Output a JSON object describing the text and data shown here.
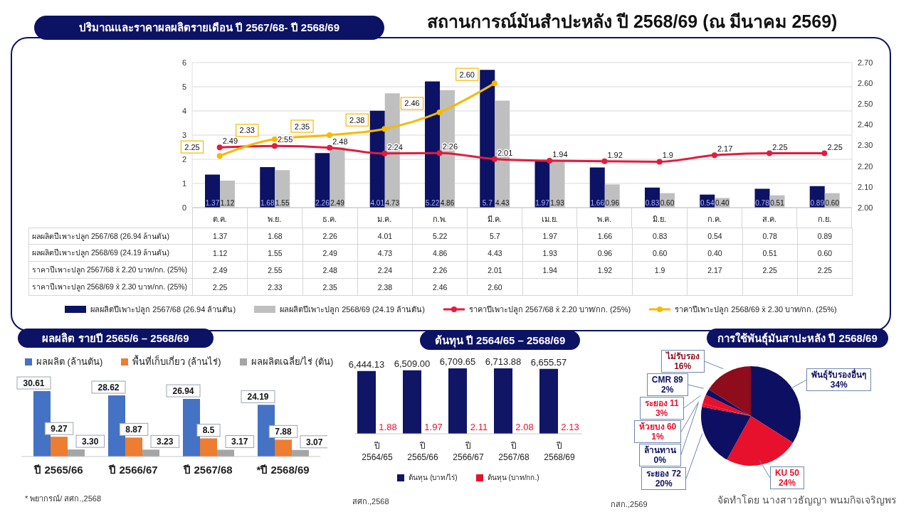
{
  "chart_data": [
    {
      "type": "bar",
      "title": "สถานการณ์มันสำปะหลัง ปี 2568/69 (ณ มีนาคม 2569)",
      "subtitle": "ปริมาณและราคาผลผลิตรายเดือน ปี 2567/68- ปี 2568/69",
      "categories": [
        "ต.ค.",
        "พ.ย.",
        "ธ.ค.",
        "ม.ค.",
        "ก.พ.",
        "มี.ค.",
        "เม.ย.",
        "พ.ค.",
        "มิ.ย.",
        "ก.ค.",
        "ส.ค.",
        "ก.ย."
      ],
      "series": [
        {
          "name": "ผลผลิตปีเพาะปลูก 2567/68 (26.94 ล้านตัน)",
          "type": "bar",
          "color": "#0c1264",
          "values": [
            1.37,
            1.68,
            2.26,
            4.01,
            5.22,
            5.7,
            1.97,
            1.66,
            0.83,
            0.54,
            0.78,
            0.89
          ],
          "value_labels": [
            "1.37",
            "1.68",
            "2.26",
            "4.01",
            "5.22",
            "5.7",
            "1.97",
            "1.66",
            "0.83",
            "0.54",
            "0.78",
            "0.89"
          ]
        },
        {
          "name": "ผลผลิตปีเพาะปลูก 2568/69 (24.19 ล้านตัน)",
          "type": "bar",
          "color": "#bfbfbf",
          "values": [
            1.12,
            1.55,
            2.49,
            4.73,
            4.86,
            4.43,
            1.93,
            0.96,
            0.6,
            0.4,
            0.51,
            0.6
          ],
          "value_labels": [
            "1.12",
            "1.55",
            "2.49",
            "4.73",
            "4.86",
            "4.43",
            "1.93",
            "0.96",
            "0.60",
            "0.40",
            "0.51",
            "0.60"
          ]
        },
        {
          "name": "ราคาปีเพาะปลูก 2567/68 x̄ 2.20 บาท/กก. (25%)",
          "type": "line",
          "color": "#e31b3c",
          "values": [
            2.49,
            2.55,
            2.48,
            2.24,
            2.26,
            2.01,
            1.94,
            1.92,
            1.9,
            2.17,
            2.25,
            2.25
          ],
          "value_labels": [
            "2.49",
            "2.55",
            "2.48",
            "2.24",
            "2.26",
            "2.01",
            "1.94",
            "1.92",
            "1.9",
            "2.17",
            "2.25",
            "2.25"
          ]
        },
        {
          "name": "ราคาปีเพาะปลูก 2568/69 x̄ 2.30 บาท/กก. (25%)",
          "type": "line",
          "axis": "y2",
          "color": "#f7b900",
          "values": [
            2.25,
            2.33,
            2.35,
            2.38,
            2.46,
            2.6,
            null,
            null,
            null,
            null,
            null,
            null
          ],
          "value_labels": [
            "2.25",
            "2.33",
            "2.35",
            "2.38",
            "2.46",
            "2.60",
            null,
            null,
            null,
            null,
            null,
            null
          ]
        }
      ],
      "ylim": [
        0,
        6
      ],
      "yticks": [
        0,
        1,
        2,
        3,
        4,
        5,
        6
      ],
      "y2lim": [
        2,
        2.7
      ],
      "y2ticks": [
        {
          "value": 2,
          "label": "2.00"
        },
        {
          "value": 2.1,
          "label": "2.10"
        },
        {
          "value": 2.2,
          "label": "2.20"
        },
        {
          "value": 2.3,
          "label": "2.30"
        },
        {
          "value": 2.4,
          "label": "2.40"
        },
        {
          "value": 2.5,
          "label": "2.50"
        },
        {
          "value": 2.6,
          "label": "2.60"
        },
        {
          "value": 2.7,
          "label": "2.70"
        }
      ],
      "grid": "y",
      "legend": "bottom",
      "marker": "circle",
      "line_style": "solid"
    },
    {
      "type": "bar",
      "title": "ผลผลิต รายปี 2565/6 – 2568/69",
      "categories": [
        "ปี 2565/66",
        "ปี 2566/67",
        "ปี 2567/68",
        "*ปี 2568/69"
      ],
      "series": [
        {
          "name": "ผลผลิต (ล้านตัน)",
          "color": "#4472c4",
          "values": [
            30.61,
            28.62,
            26.94,
            24.19
          ],
          "value_labels": [
            "30.61",
            "28.62",
            "26.94",
            "24.19"
          ]
        },
        {
          "name": "พื้นที่เก็บเกี่ยว (ล้านไร่)",
          "color": "#ed7d31",
          "values": [
            9.27,
            8.87,
            8.5,
            7.88
          ],
          "value_labels": [
            "9.27",
            "8.87",
            "8.5",
            "7.88"
          ]
        },
        {
          "name": "ผลผลิตเฉลี่ย/ไร่ (ตัน)",
          "color": "#a5a5a5",
          "values": [
            3.3,
            3.23,
            3.17,
            3.07
          ],
          "value_labels": [
            "3.30",
            "3.23",
            "3.17",
            "3.07"
          ]
        }
      ],
      "legend": "top",
      "tick_labels": "x",
      "annotations": [
        "* พยากรณ์/ สศก.,2568"
      ]
    },
    {
      "type": "bar",
      "title": "ต้นทุน ปี 2564/65 – 2568/69",
      "categories": [
        "ปี 2564/65",
        "ปี 2565/66",
        "ปี 2566/67",
        "ปี 2567/68",
        "ปี 2568/69"
      ],
      "series": [
        {
          "name": "ต้นทุน (บาท/ไร่)",
          "color": "#101566",
          "values": [
            6444.13,
            6509.0,
            6709.65,
            6713.88,
            6655.57
          ],
          "value_labels": [
            "6,444.13",
            "6,509.00",
            "6,709.65",
            "6,713.88",
            "6,655.57"
          ]
        },
        {
          "name": "ต้นทุน (บาท/กก.)",
          "color": "#e8112d",
          "values": [
            1.88,
            1.97,
            2.11,
            2.08,
            2.13
          ],
          "value_labels": [
            "1.88",
            "1.97",
            "2.11",
            "2.08",
            "2.13"
          ]
        }
      ],
      "legend": "bottom",
      "tick_labels": "x",
      "annotations": [
        "สศก.,2568"
      ]
    },
    {
      "type": "pie",
      "title": "การใช้พันธุ์มันสาปะหลัง ปี 2568/69",
      "categories": [
        "พันธุ์รับรองอื่นๆ",
        "KU 50",
        "ระยอง 72",
        "ล้านทาน",
        "ห้วยบง 60",
        "ระยอง 11",
        "CMR 89",
        "ไม่รับรอง"
      ],
      "values": [
        34,
        24,
        20,
        0,
        1,
        3,
        2,
        16
      ],
      "value_labels": [
        "34%",
        "24%",
        "20%",
        "0%",
        "1%",
        "3%",
        "2%",
        "16%"
      ],
      "colors": [
        "#0d0f62",
        "#e8112d",
        "#0d0f62",
        "#0d0f62",
        "#e8112d",
        "#e8112d",
        "#0d0f62",
        "#8e0c1c"
      ],
      "annotations": [
        "กสก.,2569",
        "จัดทำโดย นางสาวธัญญา พนมกิจเจริญพร"
      ]
    }
  ]
}
